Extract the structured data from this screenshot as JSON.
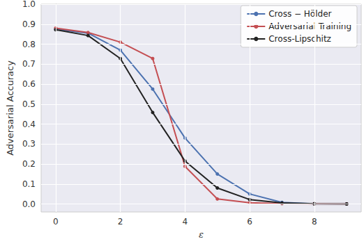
{
  "chart_data": {
    "type": "line",
    "x_label": "ε",
    "y_label": "Adversarial Accuracy",
    "x": [
      0,
      1,
      2,
      3,
      4,
      5,
      6,
      7,
      8,
      9
    ],
    "series": [
      {
        "name": "Cross − Hölder",
        "color": "#4c72b0",
        "values": [
          0.875,
          0.855,
          0.77,
          0.575,
          0.33,
          0.15,
          0.05,
          0.008,
          0.001,
          0.0
        ]
      },
      {
        "name": "Adversarial Training",
        "color": "#c44e52",
        "values": [
          0.88,
          0.858,
          0.81,
          0.728,
          0.188,
          0.025,
          0.006,
          0.002,
          0.001,
          0.0
        ]
      },
      {
        "name": "Cross-Lipschitz",
        "color": "#222222",
        "values": [
          0.872,
          0.843,
          0.728,
          0.458,
          0.215,
          0.08,
          0.022,
          0.005,
          0.001,
          0.0
        ]
      }
    ],
    "xlim": [
      -0.45,
      9.45
    ],
    "xticks": [
      0,
      2,
      4,
      6,
      8
    ],
    "ylim": [
      -0.04,
      1.0
    ],
    "yticks": [
      {
        "value": 0,
        "label": "0.0"
      },
      {
        "value": 0.1,
        "label": "0.1"
      },
      {
        "value": 0.2,
        "label": "0.2"
      },
      {
        "value": 0.3,
        "label": "0.3"
      },
      {
        "value": 0.4,
        "label": "0.4"
      },
      {
        "value": 0.5,
        "label": "0.5"
      },
      {
        "value": 0.6,
        "label": "0.6"
      },
      {
        "value": 0.7,
        "label": "0.7"
      },
      {
        "value": 0.8,
        "label": "0.8"
      },
      {
        "value": 0.9,
        "label": "0.9"
      },
      {
        "value": 1.0,
        "label": "1.0"
      }
    ],
    "grid": true,
    "legend": "upper right",
    "marker": "circle"
  }
}
